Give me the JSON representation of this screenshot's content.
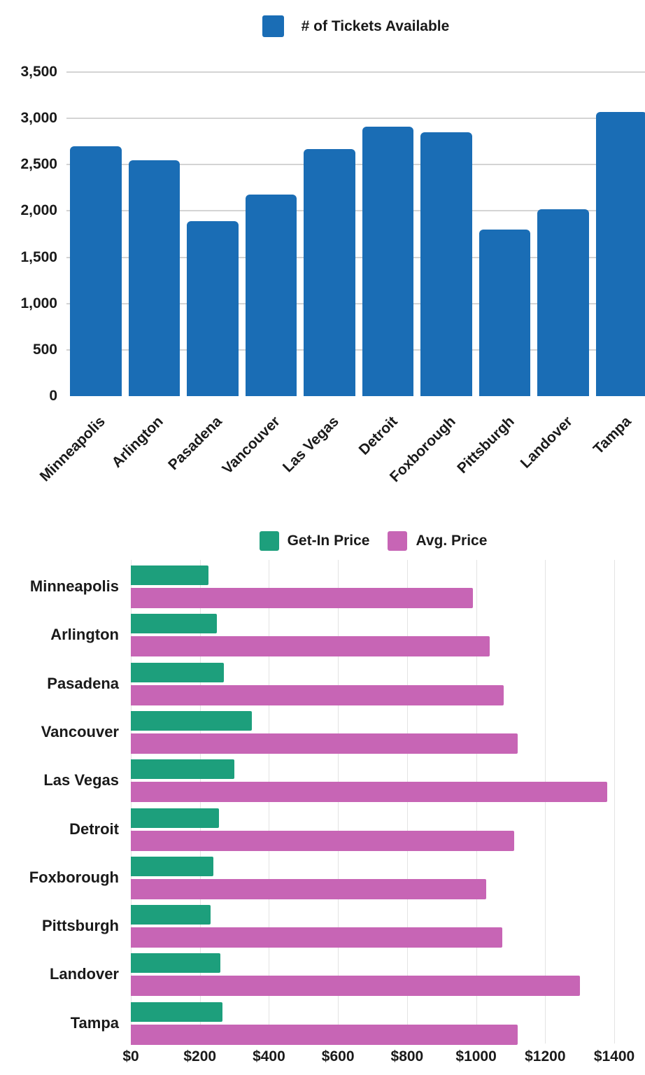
{
  "page": {
    "background": "#ffffff",
    "text_color": "#1a1a1a",
    "grid_color_top": "#d4d4d4",
    "grid_color_bottom": "#e3e3e3"
  },
  "chart_data": [
    {
      "type": "bar",
      "orientation": "vertical",
      "legend": "# of Tickets Available",
      "legend_position": "top",
      "color": "#1a6db5",
      "grid": "horizontal",
      "categories": [
        "Minneapolis",
        "Arlington",
        "Pasadena",
        "Vancouver",
        "Las Vegas",
        "Detroit",
        "Foxborough",
        "Pittsburgh",
        "Landover",
        "Tampa"
      ],
      "values": [
        2700,
        2550,
        1890,
        2180,
        2670,
        2910,
        2850,
        1800,
        2020,
        3070
      ],
      "ylim": [
        0,
        3500
      ],
      "y_tick_values": [
        0,
        500,
        1000,
        1500,
        2000,
        2500,
        3000,
        3500
      ],
      "y_tick_labels": [
        "0",
        "500",
        "1,000",
        "1,500",
        "2,000",
        "2,500",
        "3,000",
        "3,500"
      ]
    },
    {
      "type": "bar",
      "orientation": "horizontal",
      "legend_position": "top",
      "grid": "vertical",
      "categories": [
        "Minneapolis",
        "Arlington",
        "Pasadena",
        "Vancouver",
        "Las Vegas",
        "Detroit",
        "Foxborough",
        "Pittsburgh",
        "Landover",
        "Tampa"
      ],
      "series": [
        {
          "name": "Get-In Price",
          "color": "#1d9f7c",
          "values": [
            225,
            250,
            270,
            350,
            300,
            255,
            240,
            230,
            260,
            265
          ]
        },
        {
          "name": "Avg. Price",
          "color": "#c765b5",
          "values": [
            990,
            1040,
            1080,
            1120,
            1380,
            1110,
            1030,
            1075,
            1300,
            1120
          ]
        }
      ],
      "xlim": [
        0,
        1400
      ],
      "x_tick_values": [
        0,
        200,
        400,
        600,
        800,
        1000,
        1200,
        1400
      ],
      "x_tick_labels": [
        "$0",
        "$200",
        "$400",
        "$600",
        "$800",
        "$1000",
        "$1200",
        "$1400"
      ]
    }
  ]
}
